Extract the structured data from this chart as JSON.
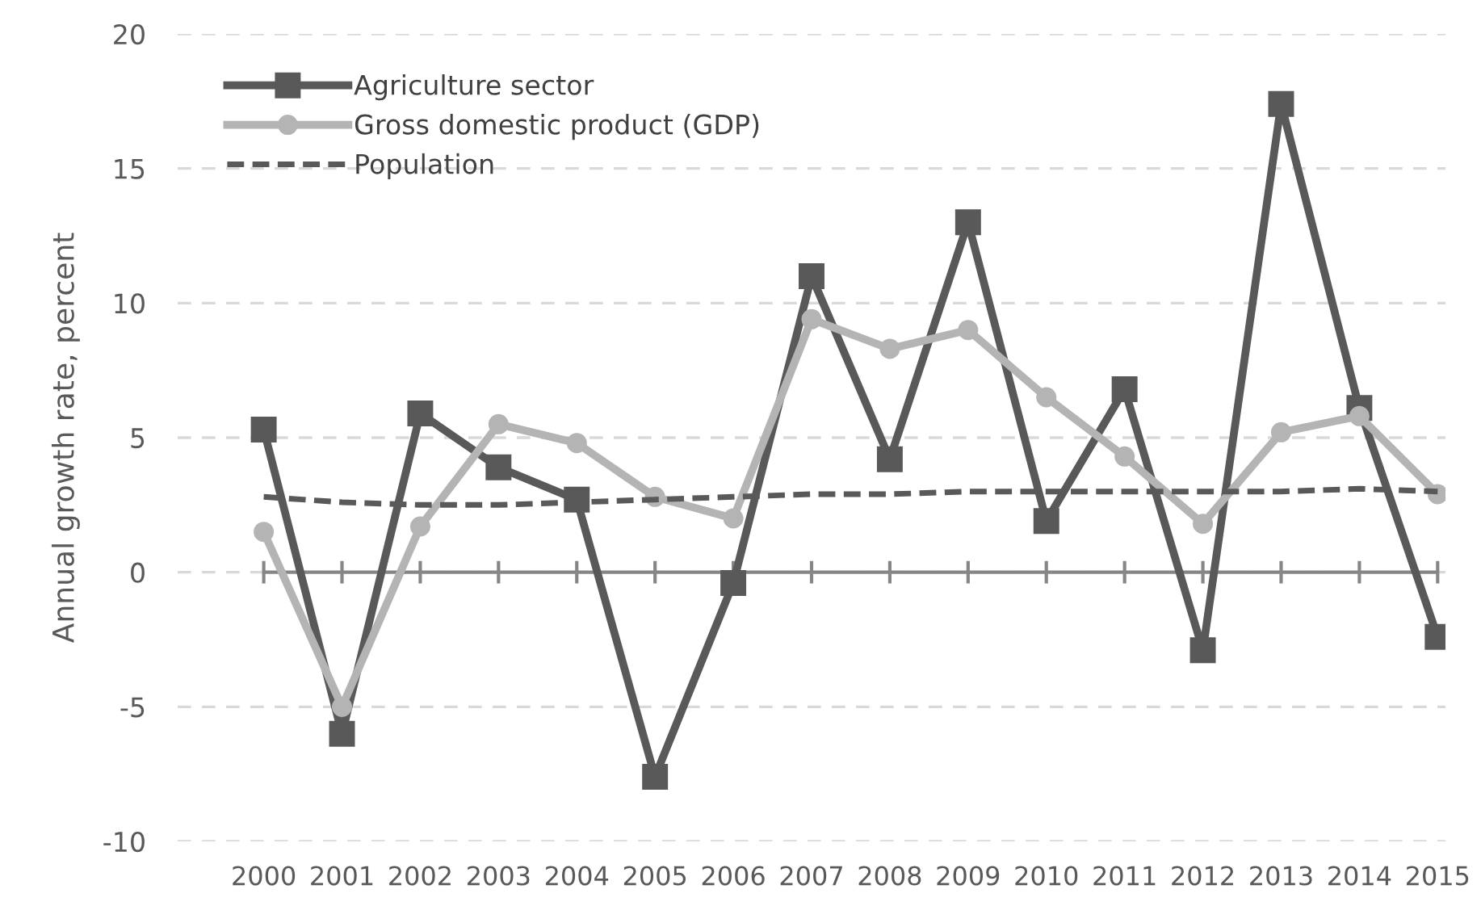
{
  "chart_data": {
    "type": "line",
    "ylabel": "Annual growth rate, percent",
    "categories": [
      "2000",
      "2001",
      "2002",
      "2003",
      "2004",
      "2005",
      "2006",
      "2007",
      "2008",
      "2009",
      "2010",
      "2011",
      "2012",
      "2013",
      "2014",
      "2015"
    ],
    "series": [
      {
        "name": "Agriculture sector",
        "color": "#595959",
        "marker": "square",
        "line_style": "solid",
        "values": [
          5.3,
          -6.0,
          5.9,
          3.9,
          2.7,
          -7.6,
          -0.4,
          11.0,
          4.2,
          13.0,
          1.9,
          6.8,
          -2.9,
          17.4,
          6.1,
          -2.4
        ]
      },
      {
        "name": "Gross domestic product (GDP)",
        "color": "#b4b4b4",
        "marker": "circle",
        "line_style": "solid",
        "values": [
          1.5,
          -5.0,
          1.7,
          5.5,
          4.8,
          2.8,
          2.0,
          9.4,
          8.3,
          9.0,
          6.5,
          4.3,
          1.8,
          5.2,
          5.8,
          2.9
        ]
      },
      {
        "name": "Population",
        "color": "#595959",
        "marker": "none",
        "line_style": "dashed",
        "values": [
          2.8,
          2.6,
          2.5,
          2.5,
          2.6,
          2.7,
          2.8,
          2.9,
          2.9,
          3.0,
          3.0,
          3.0,
          3.0,
          3.0,
          3.1,
          3.0
        ]
      }
    ],
    "ylim": [
      -10,
      20
    ],
    "yticks": [
      -10,
      -5,
      0,
      5,
      10,
      15,
      20
    ],
    "grid": "y",
    "legend": "top left"
  }
}
